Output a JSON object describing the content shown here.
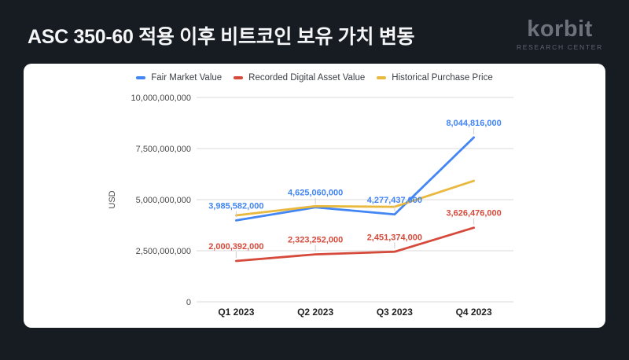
{
  "header": {
    "title": "ASC 350-60 적용 이후 비트코인 보유 가치 변동",
    "logo": {
      "brand": "korbit",
      "subtitle": "RESEARCH CENTER"
    }
  },
  "colors": {
    "background": "#171b22",
    "card": "#ffffff",
    "title_text": "#f5f6f7",
    "logo_text": "#6e737b",
    "grid": "#d9d9d9",
    "axis_text": "#494949",
    "x_axis_text": "#1f1f1f",
    "annotation_stem": "#cfcfcf",
    "series_blue": "#4285f4",
    "series_red": "#d64a3b",
    "series_yellow": "#e9b93d"
  },
  "chart_data": {
    "type": "line",
    "categories": [
      "Q1 2023",
      "Q2 2023",
      "Q3 2023",
      "Q4 2023"
    ],
    "series": [
      {
        "name": "Fair Market Value",
        "color": "#4285f4",
        "values": [
          3985582000,
          4625060000,
          4277437000,
          8044816000
        ],
        "labels": [
          "3,985,582,000",
          "4,625,060,000",
          "4,277,437,000",
          "8,044,816,000"
        ]
      },
      {
        "name": "Recorded Digital Asset Value",
        "color": "#d64a3b",
        "values": [
          2000392000,
          2323252000,
          2451374000,
          3626476000
        ],
        "labels": [
          "2,000,392,000",
          "2,323,252,000",
          "2,451,374,000",
          "3,626,476,000"
        ]
      },
      {
        "name": "Historical Purchase Price",
        "color": "#e9b93d",
        "values": [
          4230000000,
          4680000000,
          4650000000,
          5920000000
        ],
        "labels": null
      }
    ],
    "ylabel": "USD",
    "xlabel": "",
    "ylim": [
      0,
      10000000000
    ],
    "yticks": [
      {
        "value": 0,
        "label": "0"
      },
      {
        "value": 2500000000,
        "label": "2,500,000,000"
      },
      {
        "value": 5000000000,
        "label": "5,000,000,000"
      },
      {
        "value": 7500000000,
        "label": "7,500,000,000"
      },
      {
        "value": 10000000000,
        "label": "10,000,000,000"
      }
    ],
    "grid": true,
    "legend_position": "top"
  }
}
